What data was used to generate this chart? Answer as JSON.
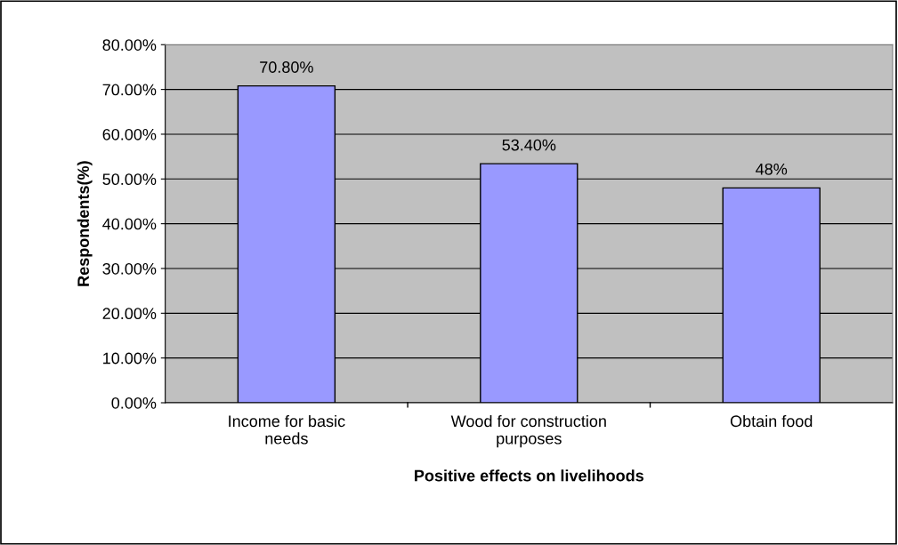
{
  "chart_data": {
    "type": "bar",
    "xlabel": "Positive effects on livelihoods",
    "ylabel": "Respondents(%)",
    "categories": [
      "Income for basic\nneeds",
      "Wood for construction\npurposes",
      "Obtain food"
    ],
    "values": [
      70.8,
      53.4,
      48
    ],
    "color": "#9999ff",
    "value_labels": [
      "70.80%",
      "53.40%",
      "48%"
    ],
    "ylim": [
      0,
      80
    ],
    "yticks": [
      {
        "value": 0,
        "label": "0.00%"
      },
      {
        "value": 10,
        "label": "10.00%"
      },
      {
        "value": 20,
        "label": "20.00%"
      },
      {
        "value": 30,
        "label": "30.00%"
      },
      {
        "value": 40,
        "label": "40.00%"
      },
      {
        "value": 50,
        "label": "50.00%"
      },
      {
        "value": 60,
        "label": "60.00%"
      },
      {
        "value": 70,
        "label": "70.00%"
      },
      {
        "value": 80,
        "label": "80.00%"
      }
    ],
    "grid": "y",
    "legend": false
  }
}
